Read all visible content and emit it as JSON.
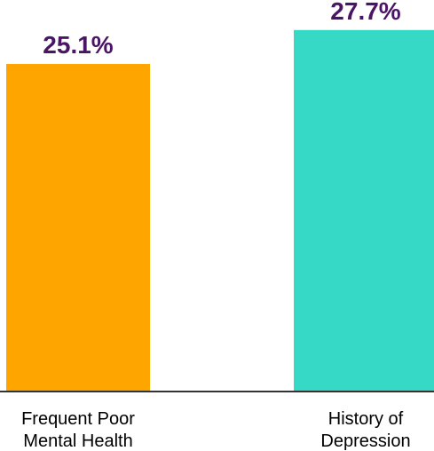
{
  "chart_data": {
    "type": "bar",
    "categories": [
      [
        "Frequent Poor",
        "Mental Health"
      ],
      [
        "History of",
        "Depression"
      ]
    ],
    "values": [
      25.1,
      27.7
    ],
    "data_labels": [
      "25.1%",
      "27.7%"
    ],
    "title": "",
    "xlabel": "",
    "ylabel": "",
    "ylim": [
      0,
      30
    ],
    "grid": false,
    "legend": "none",
    "colors": {
      "bars": [
        "#FFA500",
        "#36D9C6"
      ],
      "data_label": "#4B1565",
      "axis": "#333333"
    }
  }
}
